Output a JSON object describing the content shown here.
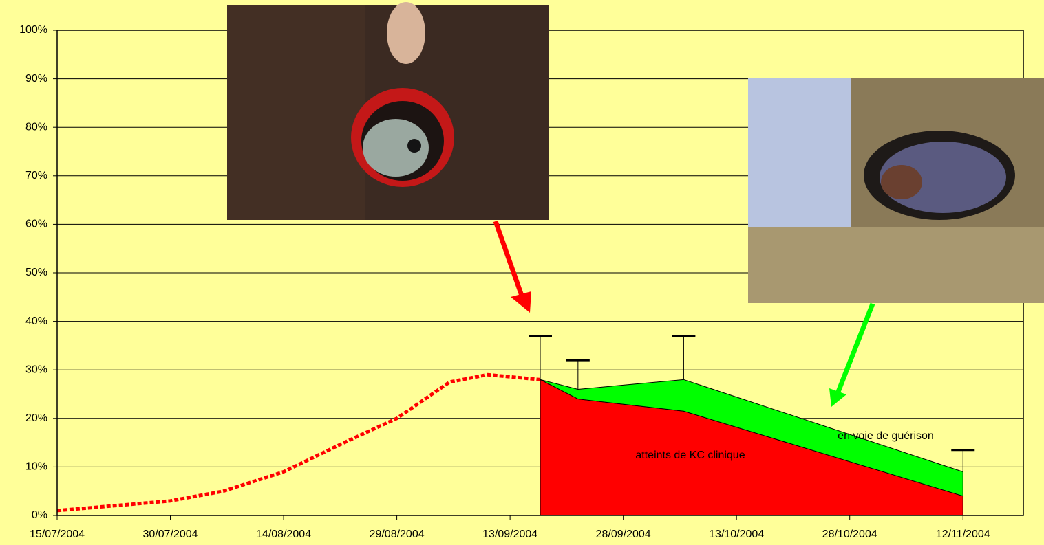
{
  "chart_data": {
    "type": "area",
    "stacked": true,
    "grid": true,
    "xlim": [
      "2004-07-15",
      "2004-11-20"
    ],
    "xticks": [
      {
        "value": "2004-07-15",
        "label": "15/07/2004"
      },
      {
        "value": "2004-07-30",
        "label": "30/07/2004"
      },
      {
        "value": "2004-08-14",
        "label": "14/08/2004"
      },
      {
        "value": "2004-08-29",
        "label": "29/08/2004"
      },
      {
        "value": "2004-09-13",
        "label": "13/09/2004"
      },
      {
        "value": "2004-09-28",
        "label": "28/09/2004"
      },
      {
        "value": "2004-10-13",
        "label": "13/10/2004"
      },
      {
        "value": "2004-10-28",
        "label": "28/10/2004"
      },
      {
        "value": "2004-11-12",
        "label": "12/11/2004"
      }
    ],
    "ylim": [
      0,
      100
    ],
    "yticks": [
      {
        "value": 0,
        "label": "0%"
      },
      {
        "value": 10,
        "label": "10%"
      },
      {
        "value": 20,
        "label": "20%"
      },
      {
        "value": 30,
        "label": "30%"
      },
      {
        "value": 40,
        "label": "40%"
      },
      {
        "value": 50,
        "label": "50%"
      },
      {
        "value": 60,
        "label": "60%"
      },
      {
        "value": 70,
        "label": "70%"
      },
      {
        "value": 80,
        "label": "80%"
      },
      {
        "value": 90,
        "label": "90%"
      },
      {
        "value": 100,
        "label": "100%"
      }
    ],
    "series": [
      {
        "type": "line",
        "line_style": "dotted",
        "color": "#ff0000",
        "x": [
          "2004-07-15",
          "2004-07-30",
          "2004-08-06",
          "2004-08-14",
          "2004-08-22",
          "2004-08-29",
          "2004-09-05",
          "2004-09-10",
          "2004-09-17"
        ],
        "values": [
          1,
          3,
          5,
          9,
          15,
          20,
          27.5,
          29,
          28
        ]
      },
      {
        "type": "area",
        "name": "atteints de KC clinique",
        "color": "#ff0000",
        "x": [
          "2004-09-17",
          "2004-09-22",
          "2004-10-06",
          "2004-11-12"
        ],
        "values": [
          28,
          24,
          21.5,
          4
        ]
      },
      {
        "type": "area",
        "name": "en voie de guérison",
        "color": "#00ff00",
        "x": [
          "2004-09-17",
          "2004-09-22",
          "2004-10-06",
          "2004-11-12"
        ],
        "values": [
          0,
          2,
          6.5,
          5
        ],
        "errors": [
          9,
          6,
          9,
          4.5
        ]
      }
    ]
  }
}
